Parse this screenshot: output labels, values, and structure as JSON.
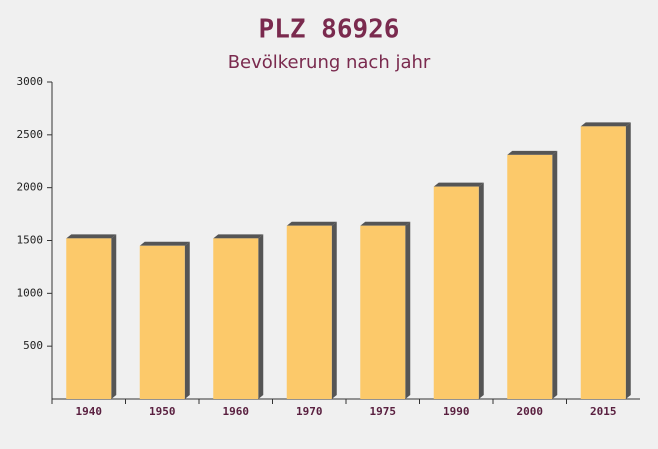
{
  "chart_data": {
    "type": "bar",
    "title": "PLZ 86926",
    "subtitle": "Bevölkerung nach jahr",
    "categories": [
      "1940",
      "1950",
      "1960",
      "1970",
      "1975",
      "1990",
      "2000",
      "2015"
    ],
    "values": [
      1520,
      1450,
      1520,
      1640,
      1640,
      2010,
      2310,
      2580
    ],
    "color": "#fcc96a",
    "ylim": [
      0,
      3000
    ],
    "yticks": [
      500,
      1000,
      1500,
      2000,
      2500,
      3000
    ]
  }
}
